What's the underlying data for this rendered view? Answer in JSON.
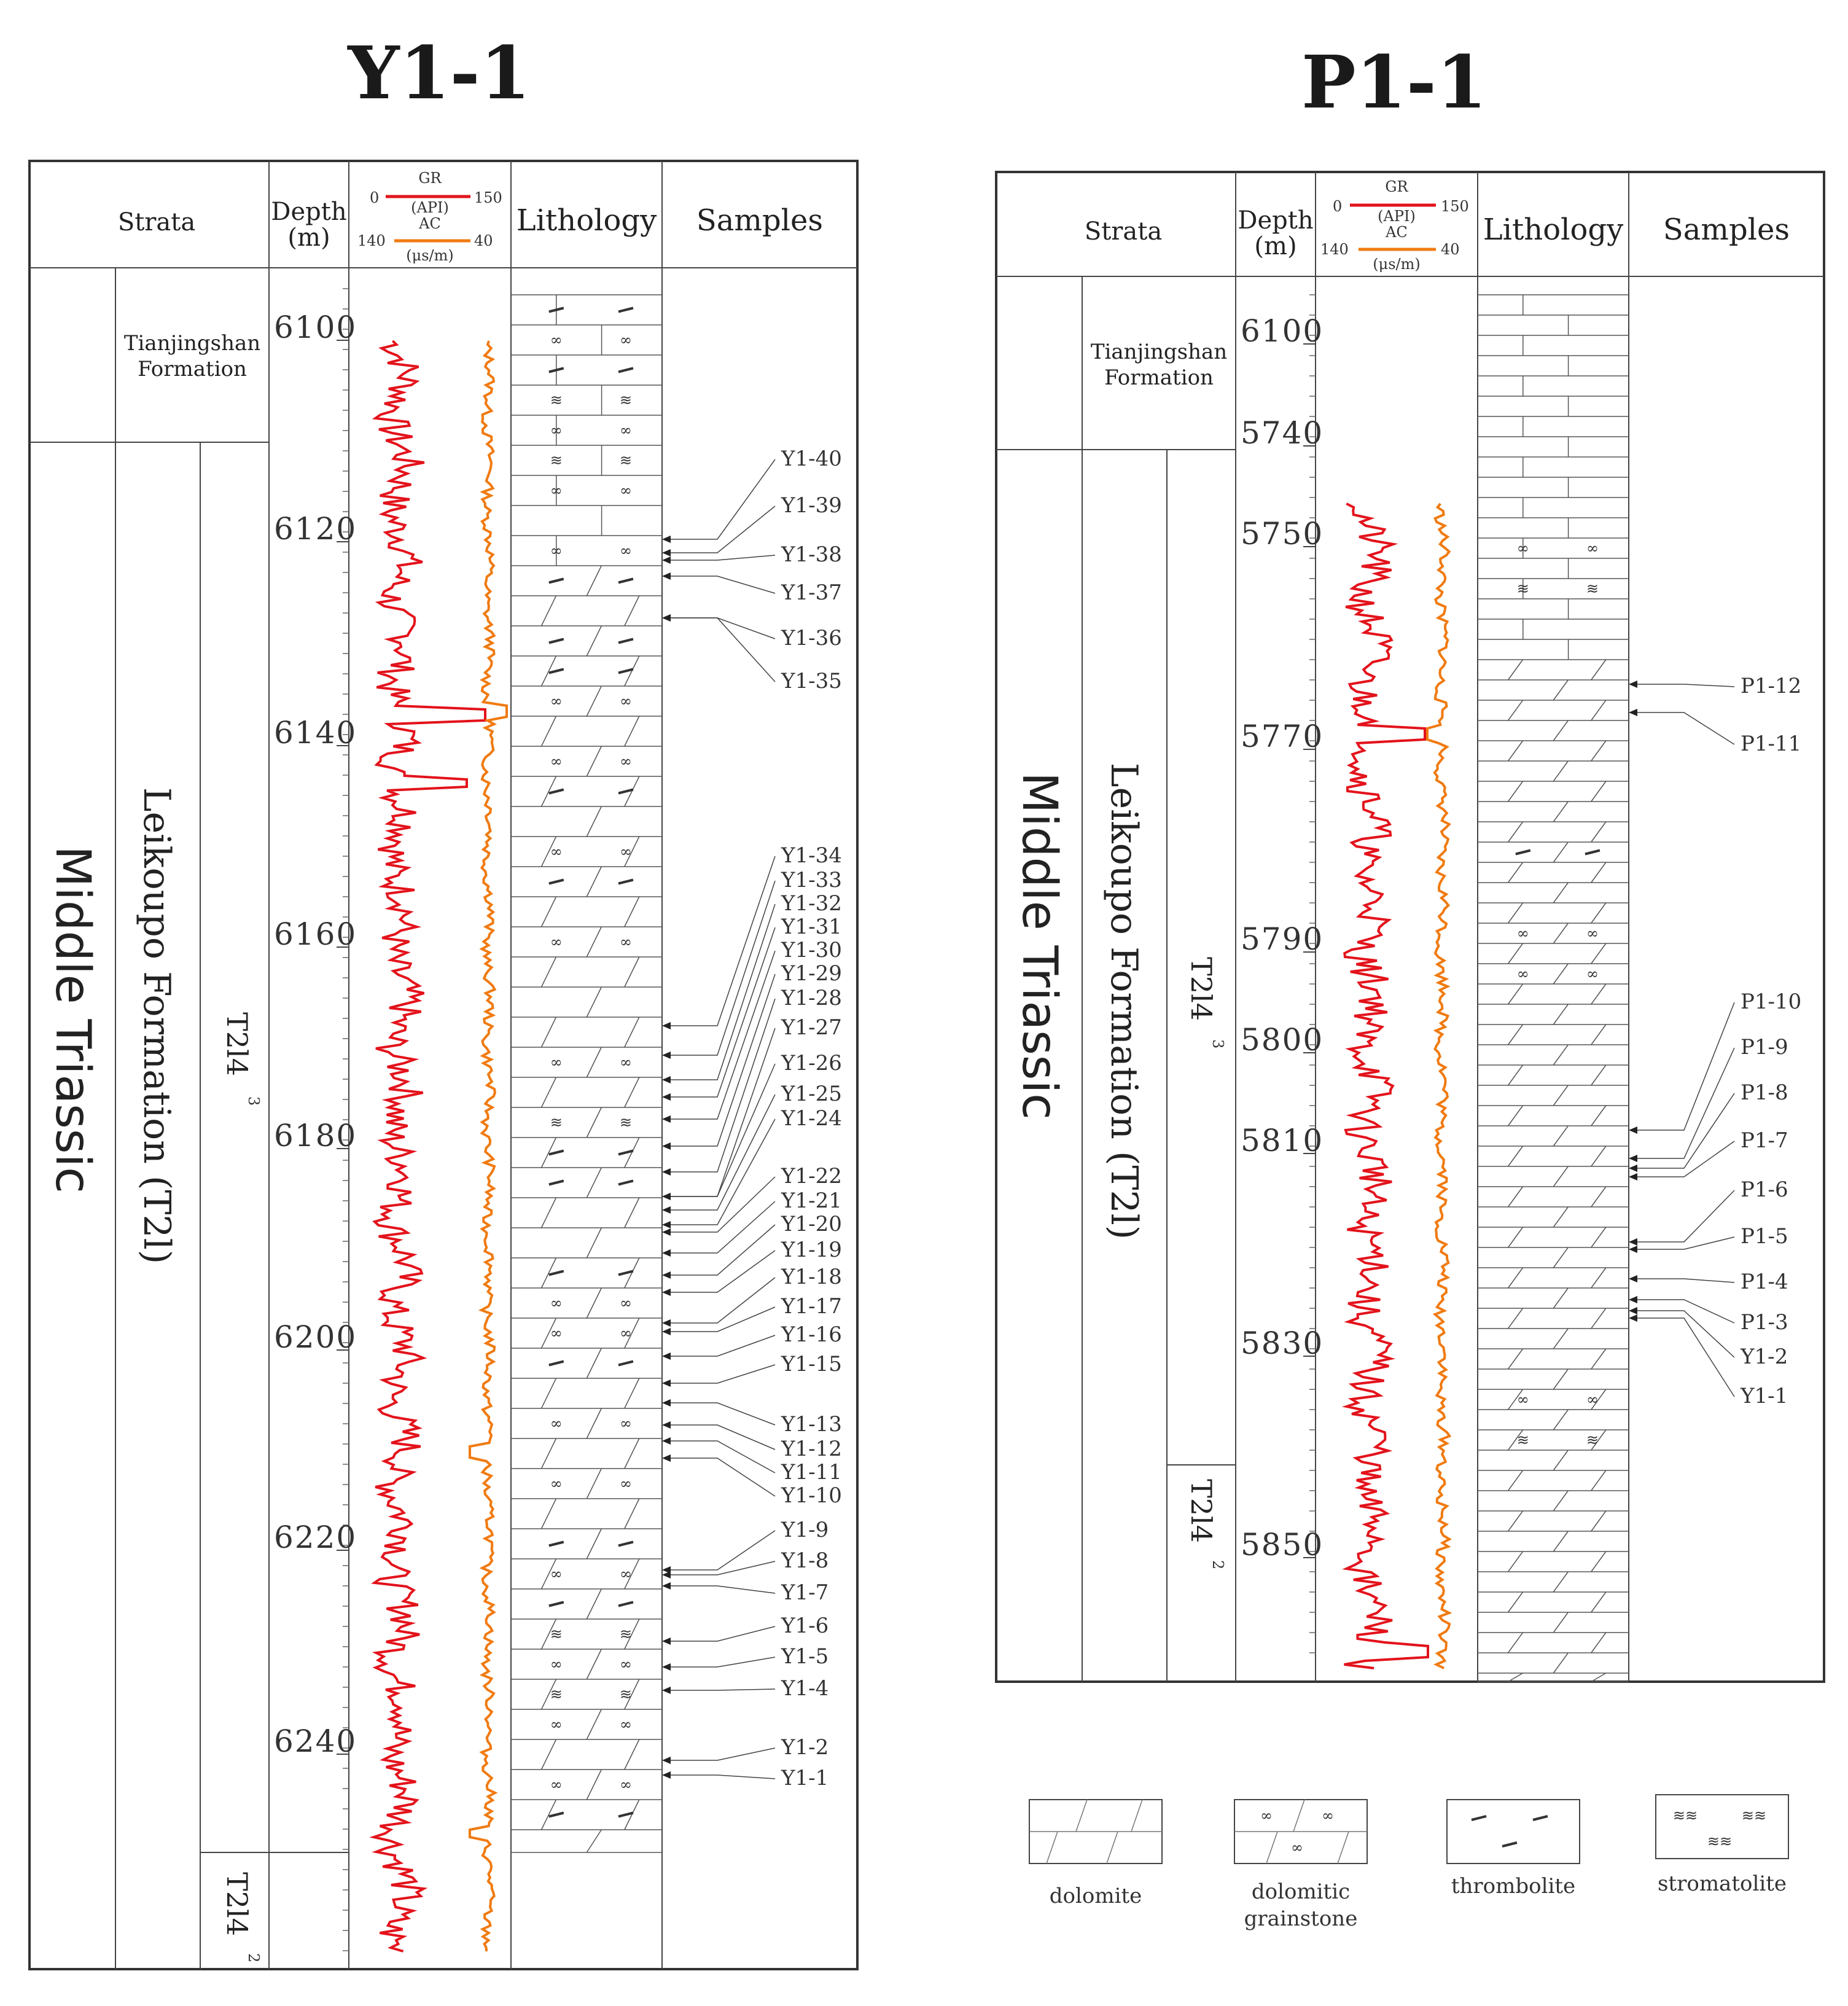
{
  "panels": [
    {
      "id": "Y1-1",
      "title": "Y1-1",
      "header": {
        "strata": "Strata",
        "depth": "Depth",
        "depth_unit": "(m)",
        "gr_label": "GR",
        "gr_unit": "(API)",
        "gr_min": "0",
        "gr_max": "150",
        "ac_label": "AC",
        "ac_unit": "(μs/m)",
        "ac_left": "140",
        "ac_right": "40",
        "lithology": "Lithology",
        "samples": "Samples"
      },
      "series_label": "Middle Triassic",
      "upper_formation": [
        "Tianjingshan",
        "Formation"
      ],
      "formation": "Leikoupo Formation  (T2l)",
      "member_upper": "T2l4",
      "member_upper_sup": "3",
      "member_lower": "T2l4",
      "member_lower_sup": "2",
      "depth_ticks": [
        "6100",
        "6120",
        "6140",
        "6160",
        "6180",
        "6200",
        "6220",
        "6240"
      ],
      "samples": [
        "Y1-40",
        "Y1-39",
        "Y1-38",
        "Y1-37",
        "Y1-36",
        "Y1-35",
        "Y1-34",
        "Y1-33",
        "Y1-32",
        "Y1-31",
        "Y1-30",
        "Y1-29",
        "Y1-28",
        "Y1-27",
        "Y1-26",
        "Y1-25",
        "Y1-24",
        "Y1-22",
        "Y1-21",
        "Y1-20",
        "Y1-19",
        "Y1-18",
        "Y1-17",
        "Y1-16",
        "Y1-15",
        "Y1-13",
        "Y1-12",
        "Y1-11",
        "Y1-10",
        "Y1-9",
        "Y1-8",
        "Y1-7",
        "Y1-6",
        "Y1-5",
        "Y1-4",
        "Y1-2",
        "Y1-1"
      ]
    },
    {
      "id": "P1-1",
      "title": "P1-1",
      "header": {
        "strata": "Strata",
        "depth": "Depth",
        "depth_unit": "(m)",
        "gr_label": "GR",
        "gr_unit": "(API)",
        "gr_min": "0",
        "gr_max": "150",
        "ac_label": "AC",
        "ac_unit": "(μs/m)",
        "ac_left": "140",
        "ac_right": "40",
        "lithology": "Lithology",
        "samples": "Samples"
      },
      "series_label": "Middle Triassic",
      "upper_formation": [
        "Tianjingshan",
        "Formation"
      ],
      "formation": "Leikoupo Formation  (T2l)",
      "member_upper": "T2l4",
      "member_upper_sup": "3",
      "member_lower": "T2l4",
      "member_lower_sup": "2",
      "depth_ticks": [
        "6100",
        "5740",
        "5750",
        "5770",
        "5790",
        "5800",
        "5810",
        "5830",
        "5850"
      ],
      "samples": [
        "P1-12",
        "P1-11",
        "P1-10",
        "P1-9",
        "P1-8",
        "P1-7",
        "P1-6",
        "P1-5",
        "P1-4",
        "P1-3",
        "Y1-2",
        "Y1-1"
      ]
    }
  ],
  "legend": [
    {
      "key": "dolomite",
      "label": "dolomite"
    },
    {
      "key": "dolomitic-grainstone",
      "label": "dolomitic grainstone"
    },
    {
      "key": "thrombolite",
      "label": "thrombolite"
    },
    {
      "key": "stromatolite",
      "label": "stromatolite"
    }
  ],
  "colors": {
    "gr_curve": "#e3121b",
    "ac_curve": "#f07a10",
    "frame": "#333333"
  }
}
